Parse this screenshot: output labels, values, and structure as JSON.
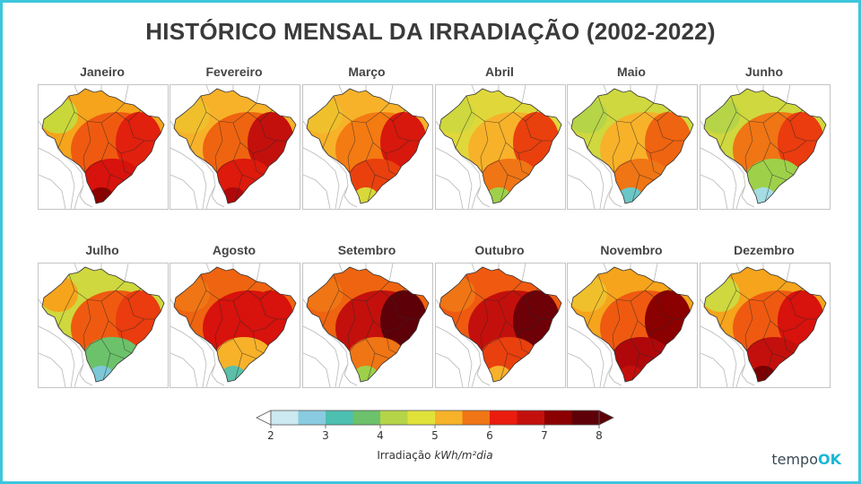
{
  "title": "HISTÓRICO MENSAL DA IRRADIAÇÃO  (2002-2022)",
  "months": [
    {
      "label": "Janeiro",
      "north": "#f5a41c",
      "center": "#ef5a10",
      "south": "#d8120c",
      "east": "#e2200e",
      "deep": "#8b0000",
      "edge": "#c8d83a"
    },
    {
      "label": "Fevereiro",
      "north": "#f7b22a",
      "center": "#ef6410",
      "south": "#dd1a0c",
      "east": "#c4100c",
      "deep": "#b0080a",
      "edge": "#f0c02c"
    },
    {
      "label": "Março",
      "north": "#f7b22a",
      "center": "#f47a12",
      "south": "#e9400e",
      "east": "#d8180c",
      "deep": "#d8d83a",
      "edge": "#f0c02c"
    },
    {
      "label": "Abril",
      "north": "#e0d83a",
      "center": "#f7b22a",
      "south": "#f07514",
      "east": "#e9400e",
      "deep": "#9ed04a",
      "edge": "#cfd83e"
    },
    {
      "label": "Maio",
      "north": "#cfd83e",
      "center": "#f7b22a",
      "south": "#f07514",
      "east": "#ef6410",
      "deep": "#6bc6c8",
      "edge": "#b6d448"
    },
    {
      "label": "Junho",
      "north": "#cfd83e",
      "center": "#f07514",
      "south": "#9ed04a",
      "east": "#ea3c0e",
      "deep": "#a6dce4",
      "edge": "#b6d448"
    },
    {
      "label": "Julho",
      "north": "#cfd83e",
      "center": "#ef5a10",
      "south": "#6cc26a",
      "east": "#ea3c0e",
      "deep": "#7cc8d8",
      "edge": "#f5a41c"
    },
    {
      "label": "Agosto",
      "north": "#ef6410",
      "center": "#d8120c",
      "south": "#f7b22a",
      "east": "#d8120c",
      "deep": "#5cc0a8",
      "edge": "#f07514"
    },
    {
      "label": "Setembro",
      "north": "#ef6410",
      "center": "#c4100c",
      "south": "#f07514",
      "east": "#5e0008",
      "deep": "#9ed04a",
      "edge": "#f07514"
    },
    {
      "label": "Outubro",
      "north": "#ef5a10",
      "center": "#c4100c",
      "south": "#e9400e",
      "east": "#6e0008",
      "deep": "#f7b22a",
      "edge": "#f07514"
    },
    {
      "label": "Novembro",
      "north": "#f5a41c",
      "center": "#ef5a10",
      "south": "#b0080a",
      "east": "#8b0000",
      "deep": "#c4100c",
      "edge": "#f0c02c"
    },
    {
      "label": "Dezembro",
      "north": "#f5a41c",
      "center": "#ef5a10",
      "south": "#c4100c",
      "east": "#d8120c",
      "deep": "#7a0004",
      "edge": "#cfd83e"
    }
  ],
  "legend": {
    "label_prefix": "Irradiação ",
    "label_unit": "kWh/m²dia",
    "ticks": [
      "2",
      "3",
      "4",
      "5",
      "6",
      "7",
      "8"
    ],
    "colors": [
      "#cce8f0",
      "#89cbe0",
      "#4dbfb0",
      "#6cc26a",
      "#b6d448",
      "#e0e23a",
      "#f7b22a",
      "#f07514",
      "#ea1c0e",
      "#c4100c",
      "#8b0000",
      "#5e0008"
    ]
  },
  "logo": {
    "prefix": "tempo",
    "suffix": "OK"
  }
}
